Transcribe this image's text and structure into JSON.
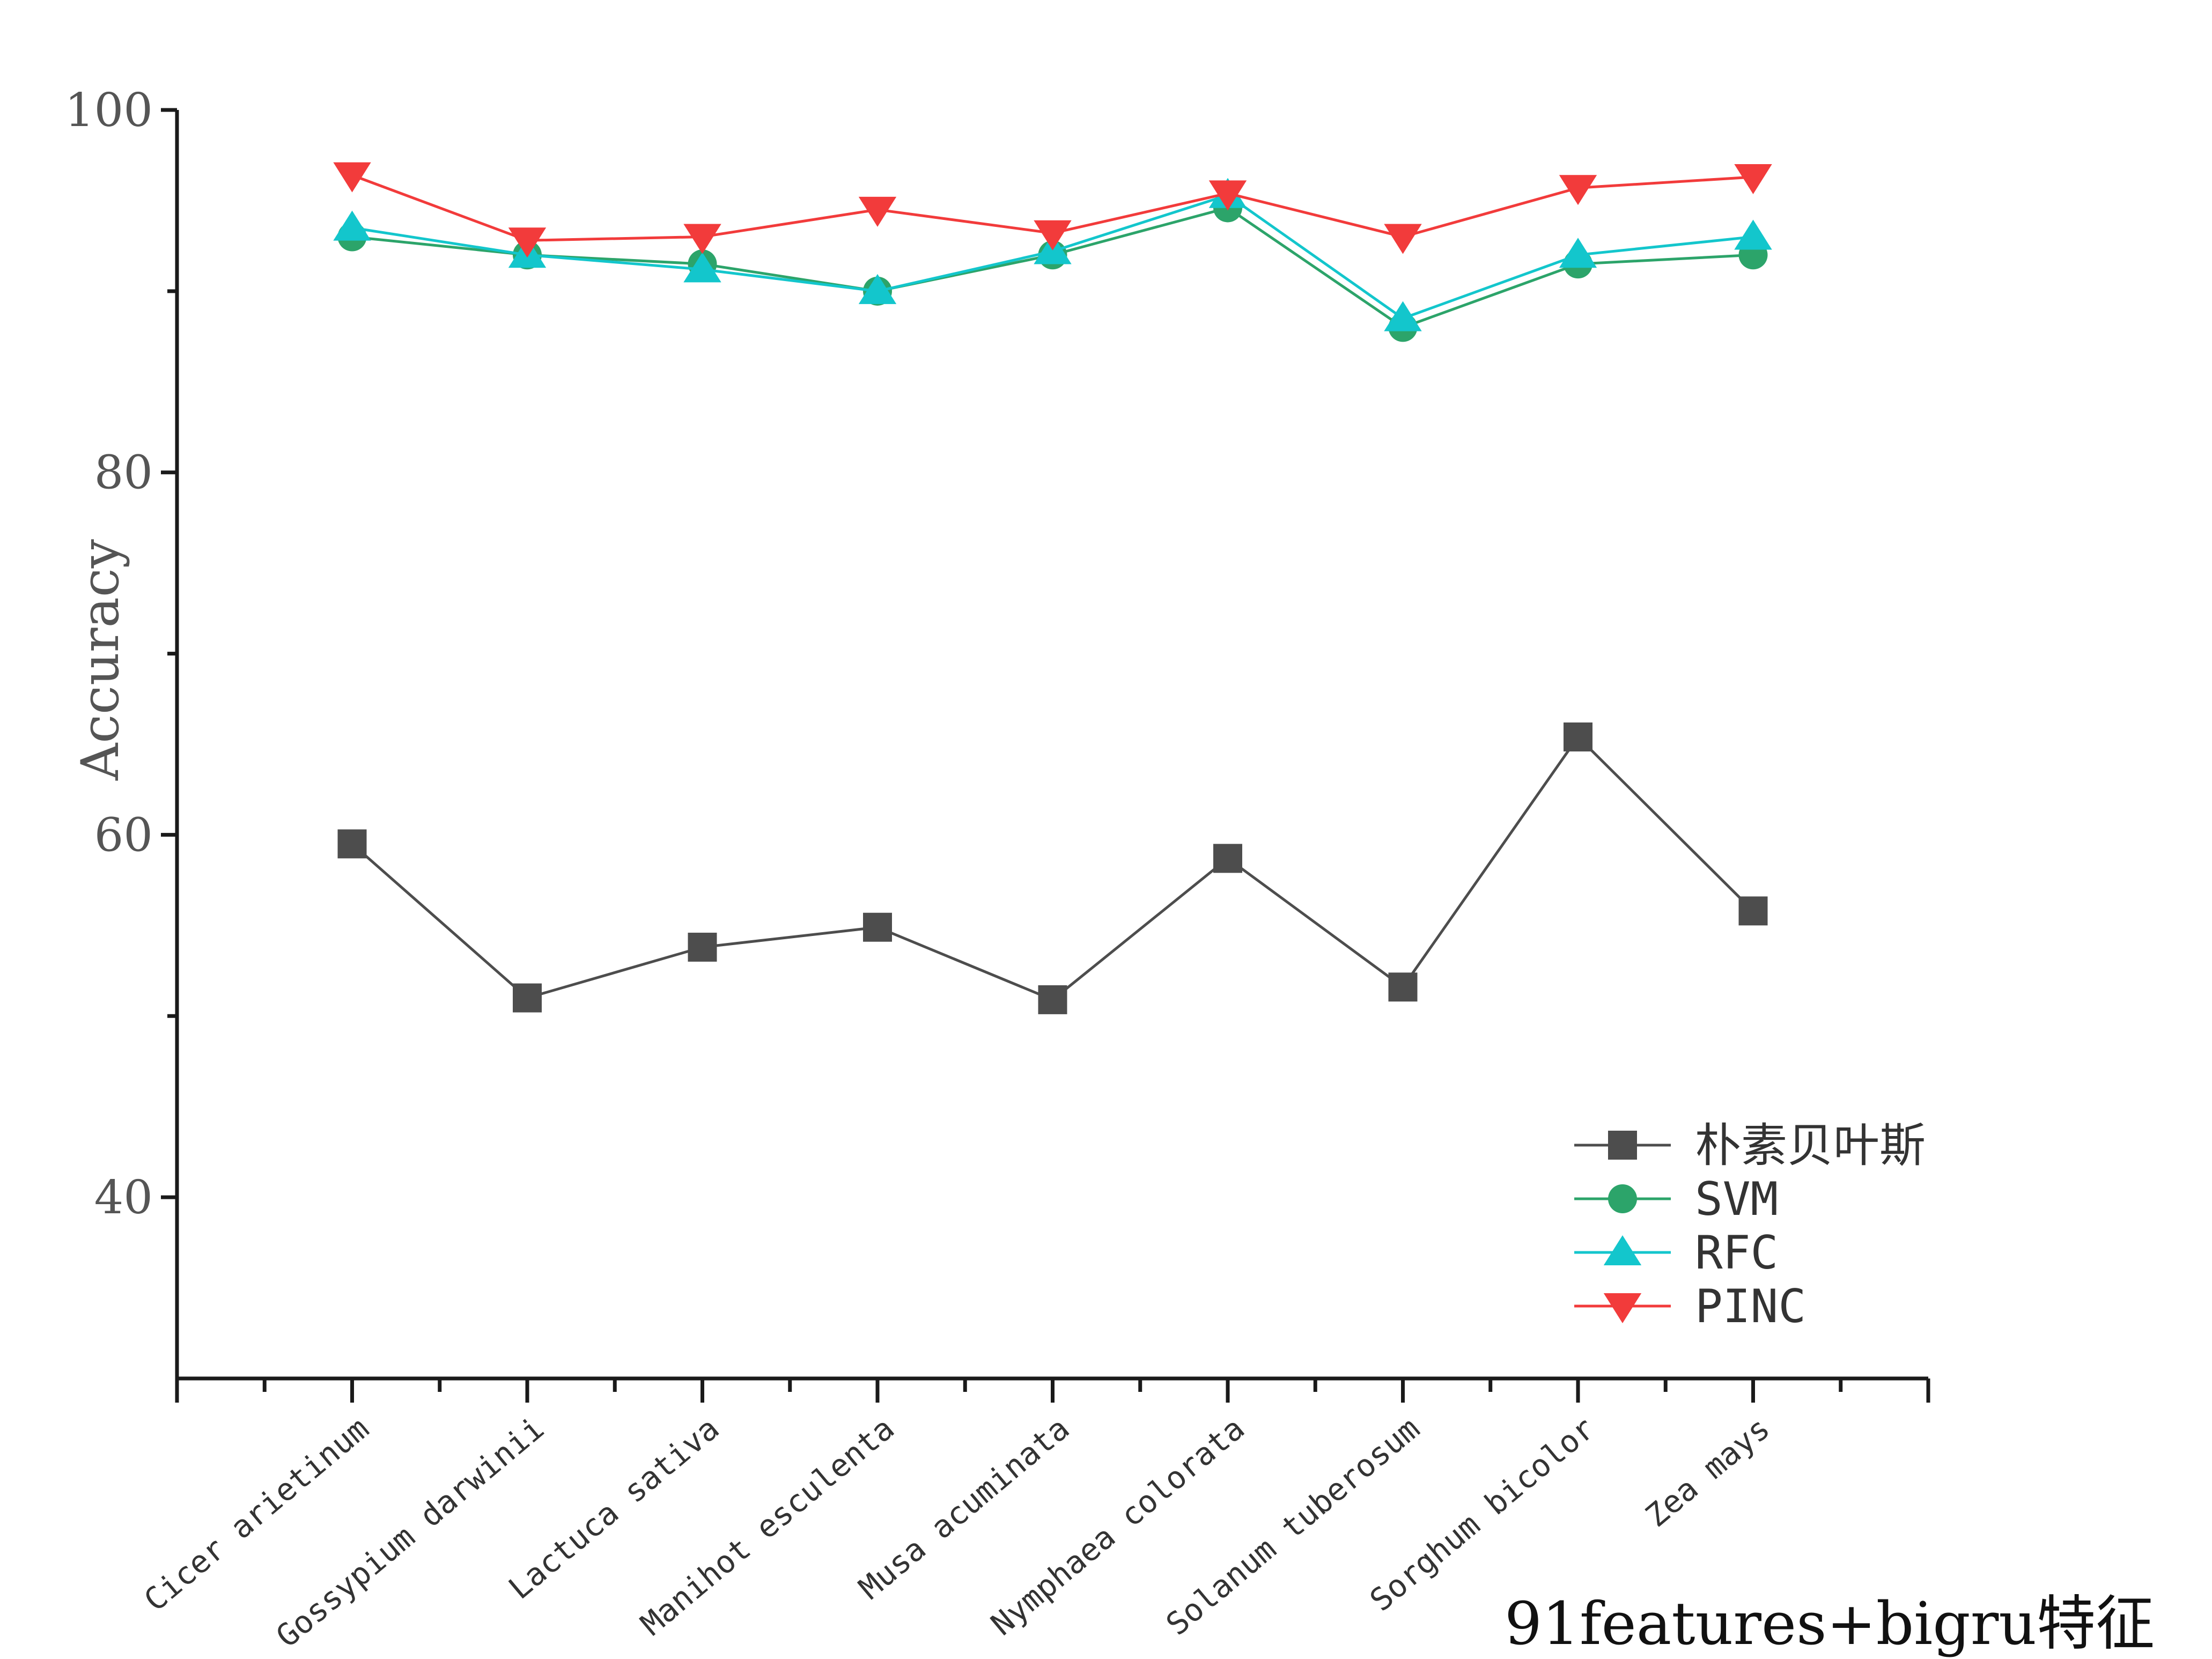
{
  "chart_data": {
    "type": "line",
    "categories": [
      "Cicer arietinum",
      "Gossypium darwinii",
      "Lactuca sativa",
      "Manihot esculenta",
      "Musa acuminata",
      "Nymphaea colorata",
      "Solanum tuberosum",
      "Sorghum bicolor",
      "Zea mays"
    ],
    "series": [
      {
        "name": "朴素贝叶斯",
        "color": "#4d4d4d",
        "marker": "square",
        "values": [
          59.5,
          51.0,
          53.8,
          54.9,
          50.9,
          58.7,
          51.6,
          65.4,
          55.8
        ]
      },
      {
        "name": "SVM",
        "color": "#2ca46a",
        "marker": "circle",
        "values": [
          93.0,
          92.0,
          91.5,
          90.0,
          92.0,
          94.6,
          88.0,
          91.5,
          92.0
        ]
      },
      {
        "name": "RFC",
        "color": "#13c6cc",
        "marker": "triangle-up",
        "values": [
          93.5,
          92.0,
          91.2,
          90.0,
          92.2,
          95.3,
          88.5,
          92.0,
          93.0
        ]
      },
      {
        "name": "PINC",
        "color": "#f23b3b",
        "marker": "triangle-down",
        "values": [
          96.4,
          92.8,
          93.0,
          94.5,
          93.2,
          95.4,
          93.0,
          95.7,
          96.3
        ]
      }
    ],
    "ylabel": "Accuracy",
    "xlabel": "",
    "ylim": [
      30,
      100
    ],
    "yticks": [
      40,
      60,
      80,
      100
    ],
    "grid": false,
    "legend_position": "bottom-right"
  },
  "footer": {
    "text": "91features+bigru特征"
  }
}
